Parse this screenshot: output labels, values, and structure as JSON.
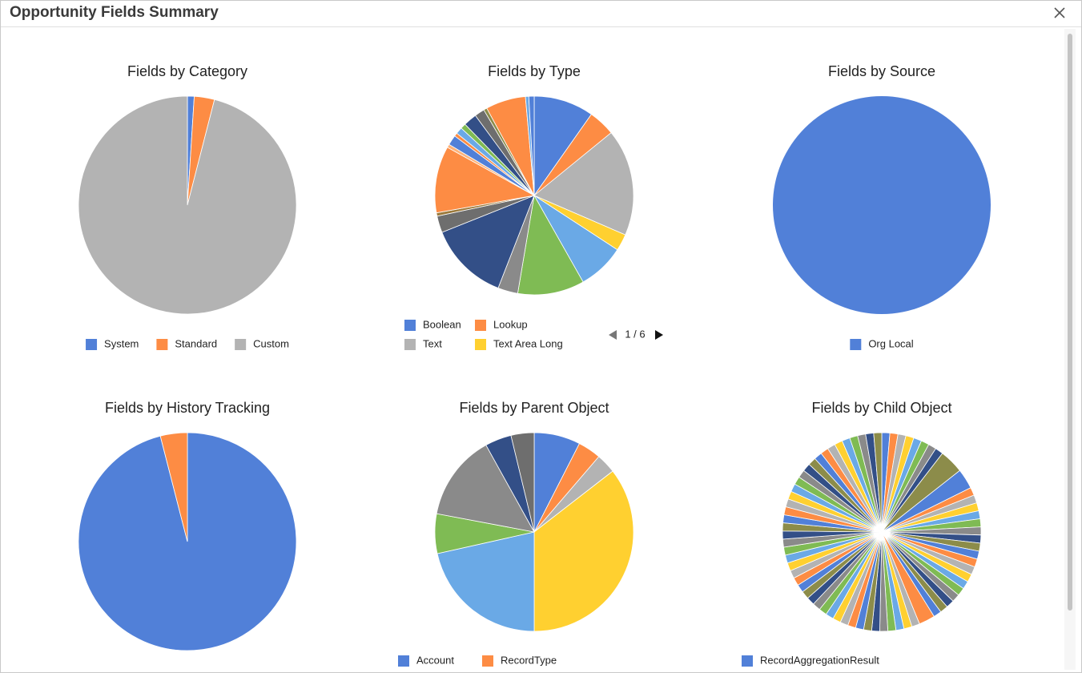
{
  "header": {
    "title": "Opportunity Fields Summary"
  },
  "chart_data": [
    {
      "type": "pie",
      "title": "Fields by Category",
      "categories": [
        "System",
        "Standard",
        "Custom"
      ],
      "values": [
        1,
        3,
        96
      ],
      "colors": [
        "#5180d8",
        "#fd8c44",
        "#b3b3b3"
      ]
    },
    {
      "type": "pie",
      "title": "Fields by Type",
      "legend_pager": "1 / 6",
      "categories": [
        "Boolean",
        "Lookup",
        "Text",
        "Text Area Long",
        null,
        null,
        null,
        null,
        null,
        null,
        null,
        null,
        null,
        null,
        null,
        null,
        null,
        null,
        null,
        null,
        null,
        null
      ],
      "values": [
        9,
        4,
        16,
        2.5,
        7,
        10,
        3,
        12,
        2.5,
        0.5,
        10,
        0.5,
        1.5,
        0.5,
        1,
        0.8,
        2,
        1.5,
        0.5,
        6,
        0.5,
        0.8
      ],
      "colors": [
        "#5180d8",
        "#fd8c44",
        "#b3b3b3",
        "#ffd030",
        "#6aa9e6",
        "#7fbb54",
        "#8a8a8a",
        "#334f87",
        "#6e6e6e",
        "#9c7a3c",
        "#fd8c44",
        "#fdb27a",
        "#5180d8",
        "#fd8c44",
        "#6aa9e6",
        "#7fbb54",
        "#334f87",
        "#6e6e6e",
        "#8c8c4a",
        "#fd8c44",
        "#6aa9e6",
        "#5180d8"
      ]
    },
    {
      "type": "pie",
      "title": "Fields by Source",
      "categories": [
        "Org Local"
      ],
      "values": [
        100
      ],
      "colors": [
        "#5180d8"
      ]
    },
    {
      "type": "pie",
      "title": "Fields by History Tracking",
      "categories": [
        null,
        null
      ],
      "values": [
        96,
        4
      ],
      "colors": [
        "#5180d8",
        "#fd8c44"
      ]
    },
    {
      "type": "pie",
      "title": "Fields by Parent Object",
      "categories": [
        "Account",
        "RecordType",
        null,
        null,
        null,
        null,
        null,
        null,
        null
      ],
      "values": [
        7,
        3.5,
        3,
        33,
        20,
        6,
        13,
        4,
        3.5
      ],
      "colors": [
        "#5180d8",
        "#fd8c44",
        "#b3b3b3",
        "#ffd030",
        "#6aa9e6",
        "#7fbb54",
        "#8a8a8a",
        "#334f87",
        "#6e6e6e"
      ]
    },
    {
      "type": "pie",
      "title": "Fields by Child Object",
      "categories": [
        "RecordAggregationResult",
        null,
        null,
        null,
        null,
        null,
        null,
        null,
        null,
        null,
        null,
        null,
        null,
        null,
        null,
        null,
        null,
        null,
        null,
        null,
        null,
        null,
        null,
        null,
        null,
        null,
        null,
        null,
        null,
        null,
        null,
        null,
        null,
        null,
        null,
        null,
        null,
        null,
        null,
        null,
        null,
        null,
        null,
        null,
        null,
        null,
        null,
        null,
        null,
        null,
        null,
        null,
        null,
        null,
        null,
        null,
        null,
        null,
        null,
        null,
        null,
        null,
        null,
        null,
        null,
        null,
        null,
        null,
        null,
        null,
        null,
        null
      ],
      "values": [
        1,
        1,
        1,
        1,
        1,
        1,
        1,
        1,
        3,
        2.5,
        1,
        1,
        1,
        1,
        1,
        1,
        1,
        1,
        1,
        1,
        1,
        1,
        1,
        1,
        1,
        1,
        1,
        1,
        2,
        1,
        1,
        1,
        1,
        1,
        1,
        1,
        1,
        1,
        1,
        1,
        1,
        1,
        1,
        1,
        1,
        1,
        1,
        1,
        1,
        1,
        1,
        1,
        1,
        1,
        1,
        1,
        1,
        1,
        1,
        1,
        1,
        1,
        1,
        1,
        1,
        1,
        1,
        1,
        1,
        1,
        1,
        1
      ],
      "colors": [
        "#5180d8",
        "#fd8c44",
        "#b3b3b3",
        "#ffd030",
        "#6aa9e6",
        "#7fbb54",
        "#8a8a8a",
        "#334f87",
        "#8c8c4a"
      ]
    }
  ]
}
